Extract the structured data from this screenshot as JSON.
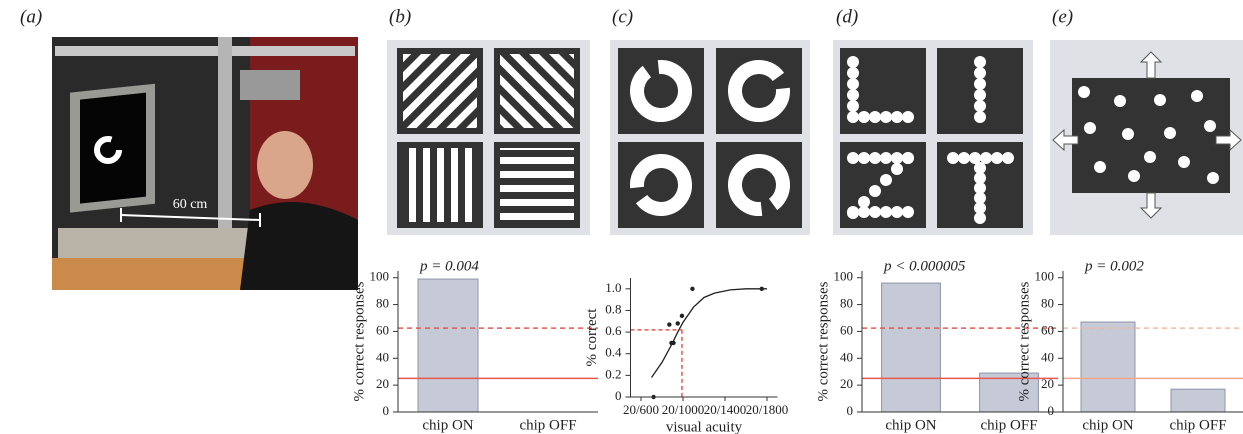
{
  "panel_labels": [
    "(a)",
    "(b)",
    "(c)",
    "(d)",
    "(e)"
  ],
  "photo_label": "60 cm",
  "chart_data": [
    {
      "type": "bar",
      "annotation": "p = 0.004",
      "ylabel": "% correct responses",
      "categories": [
        "chip ON",
        "chip OFF"
      ],
      "values": [
        99,
        0
      ],
      "color": "#c5cad6",
      "ylim": [
        0,
        105
      ],
      "yticks": [
        0,
        20,
        40,
        60,
        80,
        100
      ],
      "reference_lines": [
        {
          "value": 62.5,
          "style": "dashed",
          "color": "#e8574c"
        },
        {
          "value": 25,
          "style": "solid",
          "color": "#e8574c"
        }
      ]
    },
    {
      "type": "scatter",
      "xlabel": "visual acuity",
      "ylabel": "% correct",
      "x": [
        720,
        870,
        890,
        910,
        950,
        990,
        1090,
        1750
      ],
      "values": [
        0,
        0.67,
        0.5,
        0.5,
        0.68,
        0.75,
        1.0,
        1.0
      ],
      "color": "#222",
      "fit": {
        "x": [
          700,
          800,
          900,
          950,
          1000,
          1100,
          1200,
          1300,
          1450,
          1600,
          1800
        ],
        "values": [
          0.18,
          0.32,
          0.5,
          0.6,
          0.69,
          0.83,
          0.92,
          0.96,
          0.99,
          1.0,
          1.0
        ]
      },
      "threshold": {
        "x": 990,
        "y": 0.62,
        "color": "#e8574c"
      },
      "xlim": [
        500,
        1900
      ],
      "xticks": [
        {
          "value": 600,
          "label": "20/600"
        },
        {
          "value": 1000,
          "label": "20/1000"
        },
        {
          "value": 1400,
          "label": "20/1400"
        },
        {
          "value": 1800,
          "label": "20/1800"
        }
      ],
      "ylim": [
        0,
        1.1
      ],
      "yticks": [
        0,
        0.2,
        0.4,
        0.6,
        0.8,
        {
          "value": 1,
          "label": "1.0"
        }
      ]
    },
    {
      "type": "bar",
      "annotation": "p < 0.000005",
      "ylabel": "% correct responses",
      "categories": [
        "chip ON",
        "chip OFF"
      ],
      "values": [
        96,
        29
      ],
      "color": "#c5cad6",
      "ylim": [
        0,
        105
      ],
      "yticks": [
        0,
        20,
        40,
        60,
        80,
        100
      ],
      "reference_lines": [
        {
          "value": 62.5,
          "style": "dashed",
          "color": "#e8574c"
        },
        {
          "value": 25,
          "style": "solid",
          "color": "#e8574c"
        }
      ]
    },
    {
      "type": "bar",
      "annotation": "p = 0.002",
      "ylabel": "% correct responses",
      "categories": [
        "chip ON",
        "chip OFF"
      ],
      "values": [
        67,
        17
      ],
      "color": "#c5cad6",
      "ylim": [
        0,
        105
      ],
      "yticks": [
        0,
        20,
        40,
        60,
        80,
        100
      ],
      "reference_lines": [
        {
          "value": 62.5,
          "style": "dashed",
          "color": "#f2b9a0"
        },
        {
          "value": 25,
          "style": "solid",
          "color": "#f0a58c"
        }
      ]
    }
  ]
}
